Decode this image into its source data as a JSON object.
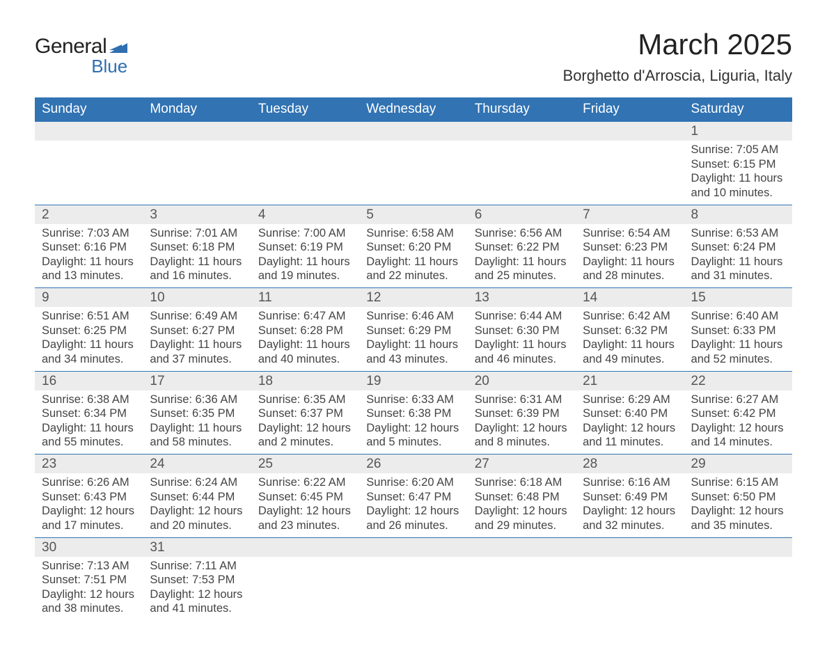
{
  "logo": {
    "text1": "General",
    "text2": "Blue",
    "shape_color": "#2f6fb0"
  },
  "title": "March 2025",
  "subtitle": "Borghetto d'Arroscia, Liguria, Italy",
  "colors": {
    "header_bg": "#3173b3",
    "header_text": "#ffffff",
    "daynum_bg": "#ececec",
    "border": "#3173b3",
    "body_text": "#444444"
  },
  "fonts": {
    "title_size": 42,
    "subtitle_size": 22,
    "header_size": 19,
    "daynum_size": 19,
    "data_size": 16.5
  },
  "weekdays": [
    "Sunday",
    "Monday",
    "Tuesday",
    "Wednesday",
    "Thursday",
    "Friday",
    "Saturday"
  ],
  "weeks": [
    [
      null,
      null,
      null,
      null,
      null,
      null,
      {
        "n": "1",
        "sr": "Sunrise: 7:05 AM",
        "ss": "Sunset: 6:15 PM",
        "d1": "Daylight: 11 hours",
        "d2": "and 10 minutes."
      }
    ],
    [
      {
        "n": "2",
        "sr": "Sunrise: 7:03 AM",
        "ss": "Sunset: 6:16 PM",
        "d1": "Daylight: 11 hours",
        "d2": "and 13 minutes."
      },
      {
        "n": "3",
        "sr": "Sunrise: 7:01 AM",
        "ss": "Sunset: 6:18 PM",
        "d1": "Daylight: 11 hours",
        "d2": "and 16 minutes."
      },
      {
        "n": "4",
        "sr": "Sunrise: 7:00 AM",
        "ss": "Sunset: 6:19 PM",
        "d1": "Daylight: 11 hours",
        "d2": "and 19 minutes."
      },
      {
        "n": "5",
        "sr": "Sunrise: 6:58 AM",
        "ss": "Sunset: 6:20 PM",
        "d1": "Daylight: 11 hours",
        "d2": "and 22 minutes."
      },
      {
        "n": "6",
        "sr": "Sunrise: 6:56 AM",
        "ss": "Sunset: 6:22 PM",
        "d1": "Daylight: 11 hours",
        "d2": "and 25 minutes."
      },
      {
        "n": "7",
        "sr": "Sunrise: 6:54 AM",
        "ss": "Sunset: 6:23 PM",
        "d1": "Daylight: 11 hours",
        "d2": "and 28 minutes."
      },
      {
        "n": "8",
        "sr": "Sunrise: 6:53 AM",
        "ss": "Sunset: 6:24 PM",
        "d1": "Daylight: 11 hours",
        "d2": "and 31 minutes."
      }
    ],
    [
      {
        "n": "9",
        "sr": "Sunrise: 6:51 AM",
        "ss": "Sunset: 6:25 PM",
        "d1": "Daylight: 11 hours",
        "d2": "and 34 minutes."
      },
      {
        "n": "10",
        "sr": "Sunrise: 6:49 AM",
        "ss": "Sunset: 6:27 PM",
        "d1": "Daylight: 11 hours",
        "d2": "and 37 minutes."
      },
      {
        "n": "11",
        "sr": "Sunrise: 6:47 AM",
        "ss": "Sunset: 6:28 PM",
        "d1": "Daylight: 11 hours",
        "d2": "and 40 minutes."
      },
      {
        "n": "12",
        "sr": "Sunrise: 6:46 AM",
        "ss": "Sunset: 6:29 PM",
        "d1": "Daylight: 11 hours",
        "d2": "and 43 minutes."
      },
      {
        "n": "13",
        "sr": "Sunrise: 6:44 AM",
        "ss": "Sunset: 6:30 PM",
        "d1": "Daylight: 11 hours",
        "d2": "and 46 minutes."
      },
      {
        "n": "14",
        "sr": "Sunrise: 6:42 AM",
        "ss": "Sunset: 6:32 PM",
        "d1": "Daylight: 11 hours",
        "d2": "and 49 minutes."
      },
      {
        "n": "15",
        "sr": "Sunrise: 6:40 AM",
        "ss": "Sunset: 6:33 PM",
        "d1": "Daylight: 11 hours",
        "d2": "and 52 minutes."
      }
    ],
    [
      {
        "n": "16",
        "sr": "Sunrise: 6:38 AM",
        "ss": "Sunset: 6:34 PM",
        "d1": "Daylight: 11 hours",
        "d2": "and 55 minutes."
      },
      {
        "n": "17",
        "sr": "Sunrise: 6:36 AM",
        "ss": "Sunset: 6:35 PM",
        "d1": "Daylight: 11 hours",
        "d2": "and 58 minutes."
      },
      {
        "n": "18",
        "sr": "Sunrise: 6:35 AM",
        "ss": "Sunset: 6:37 PM",
        "d1": "Daylight: 12 hours",
        "d2": "and 2 minutes."
      },
      {
        "n": "19",
        "sr": "Sunrise: 6:33 AM",
        "ss": "Sunset: 6:38 PM",
        "d1": "Daylight: 12 hours",
        "d2": "and 5 minutes."
      },
      {
        "n": "20",
        "sr": "Sunrise: 6:31 AM",
        "ss": "Sunset: 6:39 PM",
        "d1": "Daylight: 12 hours",
        "d2": "and 8 minutes."
      },
      {
        "n": "21",
        "sr": "Sunrise: 6:29 AM",
        "ss": "Sunset: 6:40 PM",
        "d1": "Daylight: 12 hours",
        "d2": "and 11 minutes."
      },
      {
        "n": "22",
        "sr": "Sunrise: 6:27 AM",
        "ss": "Sunset: 6:42 PM",
        "d1": "Daylight: 12 hours",
        "d2": "and 14 minutes."
      }
    ],
    [
      {
        "n": "23",
        "sr": "Sunrise: 6:26 AM",
        "ss": "Sunset: 6:43 PM",
        "d1": "Daylight: 12 hours",
        "d2": "and 17 minutes."
      },
      {
        "n": "24",
        "sr": "Sunrise: 6:24 AM",
        "ss": "Sunset: 6:44 PM",
        "d1": "Daylight: 12 hours",
        "d2": "and 20 minutes."
      },
      {
        "n": "25",
        "sr": "Sunrise: 6:22 AM",
        "ss": "Sunset: 6:45 PM",
        "d1": "Daylight: 12 hours",
        "d2": "and 23 minutes."
      },
      {
        "n": "26",
        "sr": "Sunrise: 6:20 AM",
        "ss": "Sunset: 6:47 PM",
        "d1": "Daylight: 12 hours",
        "d2": "and 26 minutes."
      },
      {
        "n": "27",
        "sr": "Sunrise: 6:18 AM",
        "ss": "Sunset: 6:48 PM",
        "d1": "Daylight: 12 hours",
        "d2": "and 29 minutes."
      },
      {
        "n": "28",
        "sr": "Sunrise: 6:16 AM",
        "ss": "Sunset: 6:49 PM",
        "d1": "Daylight: 12 hours",
        "d2": "and 32 minutes."
      },
      {
        "n": "29",
        "sr": "Sunrise: 6:15 AM",
        "ss": "Sunset: 6:50 PM",
        "d1": "Daylight: 12 hours",
        "d2": "and 35 minutes."
      }
    ],
    [
      {
        "n": "30",
        "sr": "Sunrise: 7:13 AM",
        "ss": "Sunset: 7:51 PM",
        "d1": "Daylight: 12 hours",
        "d2": "and 38 minutes."
      },
      {
        "n": "31",
        "sr": "Sunrise: 7:11 AM",
        "ss": "Sunset: 7:53 PM",
        "d1": "Daylight: 12 hours",
        "d2": "and 41 minutes."
      },
      null,
      null,
      null,
      null,
      null
    ]
  ]
}
